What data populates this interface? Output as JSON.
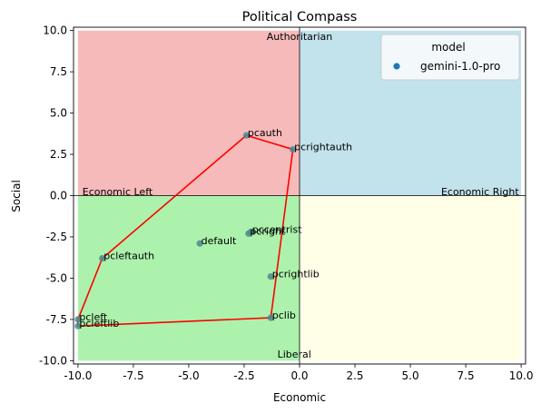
{
  "chart_data": {
    "type": "scatter",
    "title": "Political Compass",
    "xlabel": "Economic",
    "ylabel": "Social",
    "xlim": [
      -10.2,
      10.2
    ],
    "ylim": [
      -10.2,
      10.2
    ],
    "xticks": [
      -10.0,
      -7.5,
      -5.0,
      -2.5,
      0.0,
      2.5,
      5.0,
      7.5,
      10.0
    ],
    "yticks": [
      -10.0,
      -7.5,
      -5.0,
      -2.5,
      0.0,
      2.5,
      5.0,
      7.5,
      10.0
    ],
    "grid": false,
    "quadrants": [
      {
        "name": "auth-left",
        "x": [
          -10,
          0
        ],
        "y": [
          0,
          10
        ],
        "color": "#f4a3a3"
      },
      {
        "name": "auth-right",
        "x": [
          0,
          10
        ],
        "y": [
          0,
          10
        ],
        "color": "#add8e6"
      },
      {
        "name": "lib-left",
        "x": [
          -10,
          0
        ],
        "y": [
          -10,
          0
        ],
        "color": "#90ee90"
      },
      {
        "name": "lib-right",
        "x": [
          0,
          10
        ],
        "y": [
          -10,
          0
        ],
        "color": "#ffffe0"
      }
    ],
    "quadrant_labels": [
      {
        "text": "Authoritarian",
        "x": 0,
        "y": 9.65,
        "anchor": "middle"
      },
      {
        "text": "Liberal",
        "x": -1.0,
        "y": -9.6,
        "anchor": "start"
      },
      {
        "text": "Economic Left",
        "x": -9.8,
        "y": 0.25,
        "anchor": "start"
      },
      {
        "text": "Economic Right",
        "x": 9.9,
        "y": 0.25,
        "anchor": "end"
      }
    ],
    "legend": {
      "title": "model",
      "position": "top-right",
      "entries": [
        {
          "name": "gemini-1.0-pro",
          "color": "#1f77b4"
        }
      ]
    },
    "point_color": "#4a8a8e",
    "series": [
      {
        "name": "gemini-1.0-pro",
        "points": [
          {
            "label": "pcauth",
            "x": -2.4,
            "y": 3.65
          },
          {
            "label": "pcrightauth",
            "x": -0.3,
            "y": 2.8
          },
          {
            "label": "pcleftauth",
            "x": -8.9,
            "y": -3.8
          },
          {
            "label": "default",
            "x": -4.5,
            "y": -2.9
          },
          {
            "label": "pcright",
            "x": -2.3,
            "y": -2.3
          },
          {
            "label": "pccentrist",
            "x": -2.2,
            "y": -2.2
          },
          {
            "label": "pcrightlib",
            "x": -1.3,
            "y": -4.9
          },
          {
            "label": "pclib",
            "x": -1.3,
            "y": -7.4
          },
          {
            "label": "pcleft",
            "x": -10.0,
            "y": -7.5
          },
          {
            "label": "pcleftlib",
            "x": -10.0,
            "y": -7.9
          }
        ]
      }
    ],
    "hull": {
      "color": "#ff0000",
      "points": [
        [
          -2.4,
          3.65
        ],
        [
          -0.3,
          2.8
        ],
        [
          -1.3,
          -7.4
        ],
        [
          -10.0,
          -7.9
        ],
        [
          -10.0,
          -7.5
        ],
        [
          -8.9,
          -3.8
        ],
        [
          -2.4,
          3.65
        ]
      ]
    }
  }
}
